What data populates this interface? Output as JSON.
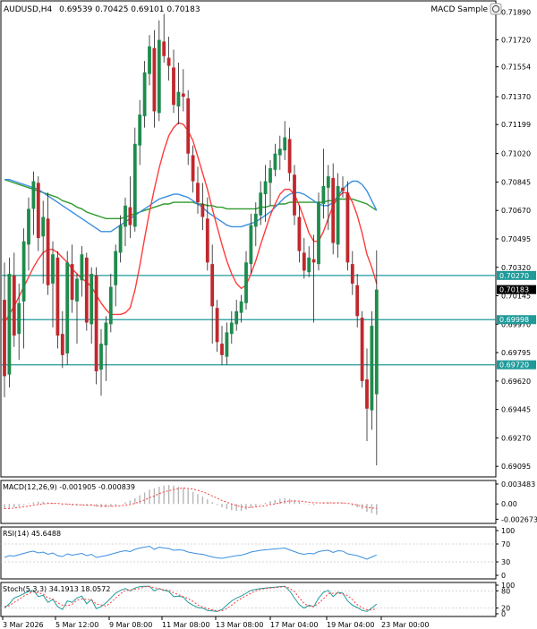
{
  "window": {
    "symbol_label": "AUDUSD,H4",
    "ohlc_label": "0.69539 0.70425 0.69101 0.70183",
    "indicator_name": "MACD Sample"
  },
  "colors": {
    "bull": "#1f8b4c",
    "bear": "#c0282d",
    "ma_fast": "#ff3b3b",
    "ma_mid": "#3a8fe0",
    "ma_slow": "#2e9a2e",
    "hline": "#1f9a9a",
    "axis": "#000000"
  },
  "price_axis": {
    "ticks": [
      "0.71890",
      "0.71720",
      "0.71554",
      "0.71370",
      "0.71199",
      "0.71020",
      "0.70845",
      "0.70670",
      "0.70495",
      "0.70320",
      "0.70145",
      "0.69970",
      "0.69795",
      "0.69620",
      "0.69445",
      "0.69270",
      "0.69095"
    ],
    "tick_values": [
      0.7189,
      0.7172,
      0.71554,
      0.7137,
      0.71199,
      0.7102,
      0.70845,
      0.7067,
      0.70495,
      0.7032,
      0.70145,
      0.6997,
      0.69795,
      0.6962,
      0.69445,
      0.6927,
      0.69095
    ],
    "ylim": [
      0.6903,
      0.7196
    ]
  },
  "levels": [
    {
      "value": 0.7027,
      "label": "0.70270"
    },
    {
      "value": 0.69998,
      "label": "0.69998"
    },
    {
      "value": 0.6972,
      "label": "0.69720"
    }
  ],
  "current_price": {
    "value": 0.70183,
    "label": "0.70183"
  },
  "x_axis": {
    "labels": [
      "3 Mar 2026",
      "5 Mar 12:00",
      "9 Mar 08:00",
      "11 Mar 08:00",
      "13 Mar 08:00",
      "17 Mar 04:00",
      "19 Mar 04:00",
      "23 Mar 00:00"
    ],
    "label_bar_index": [
      0,
      12,
      24,
      36,
      48,
      60,
      72,
      84
    ]
  },
  "chart_data": {
    "type": "candlestick",
    "ohlc": [
      [
        0.7012,
        0.7035,
        0.6952,
        0.6965
      ],
      [
        0.6966,
        0.7038,
        0.6958,
        0.7028
      ],
      [
        0.7027,
        0.7041,
        0.6983,
        0.699
      ],
      [
        0.6991,
        0.7022,
        0.6975,
        0.701
      ],
      [
        0.7011,
        0.7056,
        0.6982,
        0.7048
      ],
      [
        0.7046,
        0.7075,
        0.703,
        0.7068
      ],
      [
        0.7068,
        0.7091,
        0.7052,
        0.7085
      ],
      [
        0.7084,
        0.7088,
        0.7042,
        0.705
      ],
      [
        0.7051,
        0.7073,
        0.7022,
        0.7063
      ],
      [
        0.7062,
        0.7078,
        0.7015,
        0.7021
      ],
      [
        0.7022,
        0.7048,
        0.6995,
        0.704
      ],
      [
        0.7038,
        0.7042,
        0.6982,
        0.699
      ],
      [
        0.6991,
        0.7005,
        0.697,
        0.6978
      ],
      [
        0.6979,
        0.7042,
        0.6972,
        0.7035
      ],
      [
        0.7034,
        0.7046,
        0.7004,
        0.7012
      ],
      [
        0.7011,
        0.7028,
        0.6985,
        0.7025
      ],
      [
        0.7024,
        0.7045,
        0.7014,
        0.704
      ],
      [
        0.7038,
        0.7041,
        0.6993,
        0.6998
      ],
      [
        0.6997,
        0.7032,
        0.6985,
        0.7028
      ],
      [
        0.7027,
        0.7032,
        0.696,
        0.6968
      ],
      [
        0.6969,
        0.6994,
        0.6953,
        0.6985
      ],
      [
        0.6984,
        0.7002,
        0.6962,
        0.6998
      ],
      [
        0.6997,
        0.7028,
        0.6992,
        0.702
      ],
      [
        0.7021,
        0.7046,
        0.7008,
        0.7042
      ],
      [
        0.7041,
        0.7064,
        0.7035,
        0.7058
      ],
      [
        0.7057,
        0.7075,
        0.7045,
        0.707
      ],
      [
        0.7069,
        0.7088,
        0.705,
        0.7058
      ],
      [
        0.7057,
        0.7118,
        0.7054,
        0.7108
      ],
      [
        0.7107,
        0.7135,
        0.7095,
        0.7126
      ],
      [
        0.7125,
        0.7159,
        0.7118,
        0.7152
      ],
      [
        0.7151,
        0.7175,
        0.7144,
        0.7168
      ],
      [
        0.7167,
        0.7178,
        0.7118,
        0.7128
      ],
      [
        0.7127,
        0.7184,
        0.7122,
        0.7172
      ],
      [
        0.7171,
        0.7188,
        0.7158,
        0.7162
      ],
      [
        0.7161,
        0.7174,
        0.7147,
        0.7156
      ],
      [
        0.7155,
        0.7166,
        0.7127,
        0.7132
      ],
      [
        0.7131,
        0.7158,
        0.712,
        0.714
      ],
      [
        0.7139,
        0.7154,
        0.7128,
        0.7137
      ],
      [
        0.7136,
        0.7141,
        0.7095,
        0.7102
      ],
      [
        0.7101,
        0.7107,
        0.7078,
        0.7085
      ],
      [
        0.7084,
        0.7094,
        0.7065,
        0.7072
      ],
      [
        0.7071,
        0.7084,
        0.7055,
        0.7063
      ],
      [
        0.7062,
        0.7075,
        0.703,
        0.7035
      ],
      [
        0.7034,
        0.7046,
        0.6985,
        0.7008
      ],
      [
        0.7007,
        0.7012,
        0.698,
        0.6986
      ],
      [
        0.6985,
        0.6996,
        0.6972,
        0.6978
      ],
      [
        0.6977,
        0.6998,
        0.6972,
        0.6992
      ],
      [
        0.6991,
        0.7005,
        0.6985,
        0.6998
      ],
      [
        0.6997,
        0.7012,
        0.6993,
        0.7005
      ],
      [
        0.7004,
        0.7015,
        0.6998,
        0.7011
      ],
      [
        0.701,
        0.7042,
        0.7006,
        0.7035
      ],
      [
        0.7034,
        0.7065,
        0.7028,
        0.7058
      ],
      [
        0.7057,
        0.7072,
        0.7045,
        0.7065
      ],
      [
        0.7064,
        0.7085,
        0.7058,
        0.7078
      ],
      [
        0.7077,
        0.7095,
        0.706,
        0.7085
      ],
      [
        0.7084,
        0.7098,
        0.707,
        0.7093
      ],
      [
        0.7092,
        0.7108,
        0.7088,
        0.7102
      ],
      [
        0.7101,
        0.7113,
        0.7092,
        0.7105
      ],
      [
        0.7104,
        0.7122,
        0.7098,
        0.7112
      ],
      [
        0.7111,
        0.7118,
        0.7085,
        0.709
      ],
      [
        0.7089,
        0.7095,
        0.7058,
        0.7064
      ],
      [
        0.7063,
        0.707,
        0.7035,
        0.7042
      ],
      [
        0.7041,
        0.705,
        0.7025,
        0.703
      ],
      [
        0.7029,
        0.7045,
        0.7026,
        0.7038
      ],
      [
        0.7037,
        0.7052,
        0.6998,
        0.7035
      ],
      [
        0.7034,
        0.7078,
        0.703,
        0.7072
      ],
      [
        0.7071,
        0.7105,
        0.7062,
        0.7082
      ],
      [
        0.7081,
        0.7095,
        0.7055,
        0.7088
      ],
      [
        0.7087,
        0.7096,
        0.704,
        0.7047
      ],
      [
        0.7046,
        0.709,
        0.7038,
        0.7082
      ],
      [
        0.7081,
        0.7088,
        0.7075,
        0.7079
      ],
      [
        0.7078,
        0.7085,
        0.703,
        0.7035
      ],
      [
        0.7034,
        0.7042,
        0.7015,
        0.7022
      ],
      [
        0.7021,
        0.7028,
        0.6995,
        0.7002
      ],
      [
        0.7001,
        0.7005,
        0.6958,
        0.6962
      ],
      [
        0.6963,
        0.6982,
        0.6925,
        0.6945
      ],
      [
        0.6944,
        0.7005,
        0.6932,
        0.6996
      ],
      [
        0.69539,
        0.70425,
        0.69101,
        0.70183
      ]
    ],
    "ma_fast": [
      0.6998,
      0.7003,
      0.7008,
      0.7014,
      0.702,
      0.7026,
      0.7032,
      0.7037,
      0.7041,
      0.7043,
      0.7043,
      0.7041,
      0.7038,
      0.7035,
      0.7031,
      0.7028,
      0.7025,
      0.7023,
      0.702,
      0.7015,
      0.701,
      0.7006,
      0.7003,
      0.7003,
      0.7003,
      0.7004,
      0.7007,
      0.7018,
      0.7033,
      0.705,
      0.7066,
      0.708,
      0.7093,
      0.7104,
      0.7113,
      0.7118,
      0.7121,
      0.712,
      0.7116,
      0.711,
      0.71,
      0.709,
      0.708,
      0.7068,
      0.7057,
      0.7046,
      0.7036,
      0.7028,
      0.7022,
      0.7019,
      0.7021,
      0.7028,
      0.7036,
      0.7046,
      0.7055,
      0.7064,
      0.7071,
      0.7077,
      0.708,
      0.708,
      0.7077,
      0.707,
      0.7062,
      0.7053,
      0.7048,
      0.7048,
      0.7054,
      0.7062,
      0.707,
      0.7075,
      0.7078,
      0.7078,
      0.7072,
      0.7064,
      0.7053,
      0.704,
      0.7032,
      0.7022
    ],
    "ma_mid": [
      0.7086,
      0.7086,
      0.7085,
      0.7084,
      0.7083,
      0.7082,
      0.7081,
      0.708,
      0.7078,
      0.7076,
      0.7074,
      0.7072,
      0.707,
      0.7068,
      0.7066,
      0.7064,
      0.7062,
      0.706,
      0.7058,
      0.7056,
      0.7054,
      0.7054,
      0.7054,
      0.7056,
      0.7058,
      0.706,
      0.7062,
      0.7064,
      0.7066,
      0.7068,
      0.707,
      0.7072,
      0.7074,
      0.7075,
      0.7076,
      0.7077,
      0.7077,
      0.7076,
      0.7075,
      0.7073,
      0.7071,
      0.7069,
      0.7066,
      0.7064,
      0.7062,
      0.706,
      0.7058,
      0.7057,
      0.7057,
      0.7057,
      0.7058,
      0.7059,
      0.706,
      0.7062,
      0.7064,
      0.7066,
      0.7069,
      0.7072,
      0.7075,
      0.7077,
      0.7078,
      0.7078,
      0.7077,
      0.7075,
      0.7073,
      0.7071,
      0.707,
      0.707,
      0.7072,
      0.7076,
      0.708,
      0.7083,
      0.7085,
      0.7085,
      0.7083,
      0.7079,
      0.7073,
      0.7067
    ],
    "ma_slow": [
      0.7086,
      0.7085,
      0.7084,
      0.7083,
      0.7082,
      0.7081,
      0.708,
      0.7079,
      0.7078,
      0.7077,
      0.7076,
      0.7075,
      0.7073,
      0.7072,
      0.7071,
      0.7069,
      0.7068,
      0.7066,
      0.7065,
      0.7064,
      0.7063,
      0.7062,
      0.7062,
      0.7062,
      0.7062,
      0.7063,
      0.7064,
      0.7065,
      0.7066,
      0.7067,
      0.7068,
      0.7069,
      0.707,
      0.7071,
      0.7071,
      0.7072,
      0.7072,
      0.7072,
      0.7072,
      0.7072,
      0.7071,
      0.7071,
      0.707,
      0.707,
      0.7069,
      0.7069,
      0.7068,
      0.7068,
      0.7068,
      0.7068,
      0.7068,
      0.7068,
      0.7068,
      0.7069,
      0.7069,
      0.707,
      0.707,
      0.7071,
      0.7071,
      0.7072,
      0.7072,
      0.7072,
      0.7072,
      0.7072,
      0.7072,
      0.7072,
      0.7072,
      0.7073,
      0.7073,
      0.7074,
      0.7074,
      0.7074,
      0.7074,
      0.7073,
      0.7072,
      0.7071,
      0.7069,
      0.7067
    ]
  },
  "macd": {
    "label": "MACD(12,26,9) -0.001905 -0.000839",
    "ticks": [
      "0.003483",
      "0.00",
      "-0.002673"
    ],
    "tick_values": [
      0.003483,
      0.0,
      -0.002673
    ],
    "ylim": [
      -0.0034,
      0.0041
    ],
    "histogram": [
      -0.0009,
      -0.0007,
      -0.0006,
      -0.0004,
      -0.0002,
      0.0001,
      0.0003,
      0.0004,
      0.0004,
      0.0003,
      0.0002,
      0.0,
      -0.0002,
      -0.0002,
      -0.0003,
      -0.0003,
      -0.0002,
      -0.0003,
      -0.0003,
      -0.0005,
      -0.0006,
      -0.0006,
      -0.0005,
      -0.0003,
      0.0,
      0.0003,
      0.0006,
      0.001,
      0.0015,
      0.002,
      0.0025,
      0.0027,
      0.003,
      0.0032,
      0.0033,
      0.0032,
      0.003,
      0.0028,
      0.0025,
      0.0021,
      0.0017,
      0.0013,
      0.0008,
      0.0003,
      -0.0002,
      -0.0006,
      -0.0009,
      -0.0011,
      -0.0012,
      -0.0012,
      -0.001,
      -0.0007,
      -0.0004,
      -0.0001,
      0.0002,
      0.0005,
      0.0007,
      0.0009,
      0.001,
      0.0009,
      0.0007,
      0.0004,
      0.0001,
      -0.0001,
      -0.0002,
      0.0,
      0.0002,
      0.0003,
      0.0002,
      0.0003,
      0.0002,
      0.0,
      -0.0003,
      -0.0006,
      -0.0009,
      -0.0014,
      -0.0016,
      -0.0019
    ],
    "signal": [
      -0.0008,
      -0.0008,
      -0.0007,
      -0.0006,
      -0.0005,
      -0.0004,
      -0.0002,
      -0.0001,
      0.0,
      0.0001,
      0.0001,
      0.0001,
      0.0,
      0.0,
      -0.0001,
      -0.0001,
      -0.0002,
      -0.0002,
      -0.0002,
      -0.0003,
      -0.0003,
      -0.0004,
      -0.0004,
      -0.0004,
      -0.0003,
      -0.0002,
      -0.0001,
      0.0001,
      0.0004,
      0.0007,
      0.0011,
      0.0014,
      0.0018,
      0.0021,
      0.0023,
      0.0025,
      0.0027,
      0.0028,
      0.0027,
      0.0026,
      0.0024,
      0.0021,
      0.0018,
      0.0014,
      0.001,
      0.0006,
      0.0003,
      0.0,
      -0.0003,
      -0.0005,
      -0.0006,
      -0.0006,
      -0.0005,
      -0.0004,
      -0.0003,
      -0.0001,
      0.0,
      0.0002,
      0.0004,
      0.0005,
      0.0005,
      0.0005,
      0.0004,
      0.0003,
      0.0002,
      0.0002,
      0.0002,
      0.0002,
      0.0002,
      0.0002,
      0.0002,
      0.0001,
      0.0,
      -0.0002,
      -0.0004,
      -0.0006,
      -0.0007,
      -0.0008
    ]
  },
  "rsi": {
    "label": "RSI(14) 45.6488",
    "ticks": [
      "100",
      "70",
      "30",
      "0"
    ],
    "tick_values": [
      100,
      70,
      30,
      0
    ],
    "values": [
      40,
      44,
      43,
      46,
      49,
      52,
      54,
      50,
      52,
      47,
      50,
      44,
      42,
      48,
      45,
      47,
      49,
      44,
      47,
      40,
      42,
      44,
      47,
      50,
      53,
      55,
      53,
      58,
      61,
      63,
      65,
      58,
      63,
      61,
      60,
      56,
      57,
      56,
      52,
      50,
      48,
      47,
      44,
      41,
      39,
      38,
      40,
      42,
      44,
      45,
      48,
      52,
      54,
      56,
      57,
      58,
      59,
      60,
      61,
      57,
      53,
      49,
      47,
      49,
      48,
      53,
      55,
      56,
      51,
      55,
      54,
      48,
      46,
      44,
      40,
      36,
      41,
      45.6
    ],
    "ylim": [
      0,
      100
    ]
  },
  "stoch": {
    "label": "Stoch(5,3,3) 34.1913 18.0572",
    "ticks": [
      "100",
      "80",
      "20",
      "0"
    ],
    "tick_values": [
      100,
      80,
      20,
      0
    ],
    "k": [
      20,
      35,
      55,
      62,
      70,
      78,
      82,
      60,
      65,
      40,
      50,
      25,
      15,
      45,
      40,
      55,
      62,
      35,
      50,
      18,
      25,
      38,
      55,
      72,
      82,
      88,
      80,
      90,
      95,
      96,
      96,
      80,
      88,
      82,
      78,
      60,
      62,
      58,
      40,
      30,
      22,
      20,
      12,
      10,
      8,
      15,
      30,
      45,
      55,
      62,
      72,
      82,
      85,
      88,
      90,
      92,
      93,
      95,
      96,
      80,
      55,
      32,
      20,
      30,
      25,
      55,
      75,
      82,
      60,
      75,
      72,
      45,
      30,
      22,
      12,
      8,
      20,
      34.2
    ],
    "d": [
      25,
      28,
      40,
      50,
      62,
      70,
      77,
      73,
      69,
      55,
      52,
      38,
      30,
      28,
      33,
      47,
      52,
      51,
      49,
      34,
      31,
      27,
      39,
      55,
      70,
      81,
      83,
      86,
      88,
      94,
      96,
      91,
      88,
      83,
      83,
      73,
      67,
      60,
      53,
      43,
      31,
      24,
      18,
      14,
      10,
      11,
      18,
      30,
      43,
      54,
      63,
      72,
      80,
      85,
      88,
      90,
      92,
      93,
      95,
      90,
      77,
      56,
      36,
      27,
      25,
      37,
      52,
      71,
      72,
      72,
      69,
      64,
      49,
      32,
      21,
      14,
      13,
      18.1
    ],
    "ylim": [
      0,
      100
    ]
  }
}
